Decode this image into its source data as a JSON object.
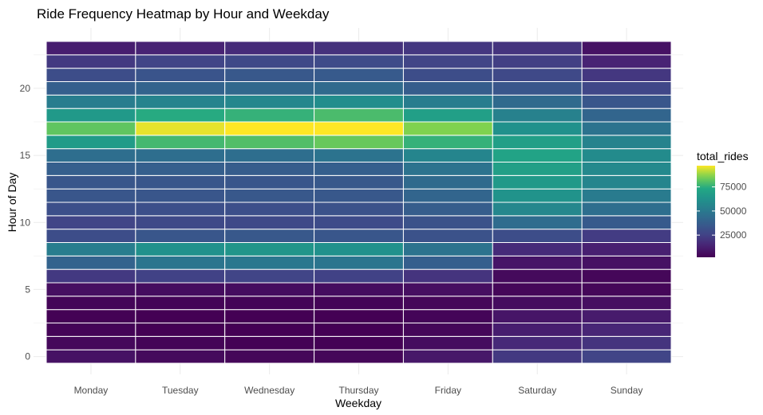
{
  "chart_data": {
    "type": "heatmap",
    "title": "Ride Frequency Heatmap by Hour and Weekday",
    "xlabel": "Weekday",
    "ylabel": "Hour of Day",
    "categories": [
      "Monday",
      "Tuesday",
      "Wednesday",
      "Thursday",
      "Friday",
      "Saturday",
      "Sunday"
    ],
    "hours": [
      0,
      1,
      2,
      3,
      4,
      5,
      6,
      7,
      8,
      9,
      10,
      11,
      12,
      13,
      14,
      15,
      16,
      17,
      18,
      19,
      20,
      21,
      22,
      23
    ],
    "y_ticks": [
      0,
      5,
      10,
      15,
      20
    ],
    "ylim": [
      -0.5,
      23.5
    ],
    "legend": {
      "title": "total_rides",
      "ticks": [
        25000,
        50000,
        75000
      ],
      "tick_labels": [
        "25000",
        "50000",
        "75000"
      ],
      "range": [
        2000,
        97000
      ],
      "placement": "right"
    },
    "grid": true,
    "colormap": "viridis",
    "values": [
      [
        8000,
        5000,
        4000,
        4000,
        10000,
        22000,
        26000
      ],
      [
        4500,
        3000,
        2500,
        2500,
        6000,
        16000,
        20000
      ],
      [
        3000,
        2000,
        2000,
        2000,
        4000,
        12000,
        15000
      ],
      [
        2500,
        2000,
        2000,
        2000,
        3500,
        9000,
        11000
      ],
      [
        3500,
        3000,
        3000,
        3000,
        4000,
        6000,
        7000
      ],
      [
        7000,
        6000,
        6000,
        6000,
        7000,
        4000,
        4000
      ],
      [
        22000,
        25000,
        26000,
        25000,
        20000,
        5000,
        4000
      ],
      [
        40000,
        48000,
        49000,
        48000,
        38000,
        9000,
        7500
      ],
      [
        52000,
        62000,
        64000,
        62000,
        47000,
        17000,
        13000
      ],
      [
        30000,
        34000,
        35000,
        34000,
        32000,
        30000,
        23000
      ],
      [
        26000,
        28000,
        28000,
        29000,
        32000,
        44000,
        36000
      ],
      [
        31000,
        31000,
        31000,
        32000,
        37000,
        57000,
        45000
      ],
      [
        34000,
        34000,
        35000,
        35000,
        41000,
        63000,
        51000
      ],
      [
        34000,
        34000,
        34000,
        35000,
        43000,
        66000,
        56000
      ],
      [
        38000,
        38000,
        37000,
        38000,
        47000,
        69000,
        58000
      ],
      [
        45000,
        45000,
        45000,
        47000,
        56000,
        71000,
        59000
      ],
      [
        67000,
        78000,
        80000,
        83000,
        76000,
        69000,
        55000
      ],
      [
        82000,
        95000,
        97000,
        97000,
        86000,
        62000,
        47000
      ],
      [
        66000,
        74000,
        76000,
        79000,
        69000,
        54000,
        41000
      ],
      [
        52000,
        55000,
        57000,
        60000,
        52000,
        43000,
        34000
      ],
      [
        38000,
        40000,
        42000,
        43000,
        37000,
        34000,
        27000
      ],
      [
        30000,
        33000,
        35000,
        36000,
        30000,
        28000,
        21000
      ],
      [
        22000,
        26000,
        28000,
        29000,
        26000,
        24000,
        14000
      ],
      [
        12000,
        14000,
        17000,
        19000,
        21000,
        20000,
        8000
      ]
    ]
  }
}
